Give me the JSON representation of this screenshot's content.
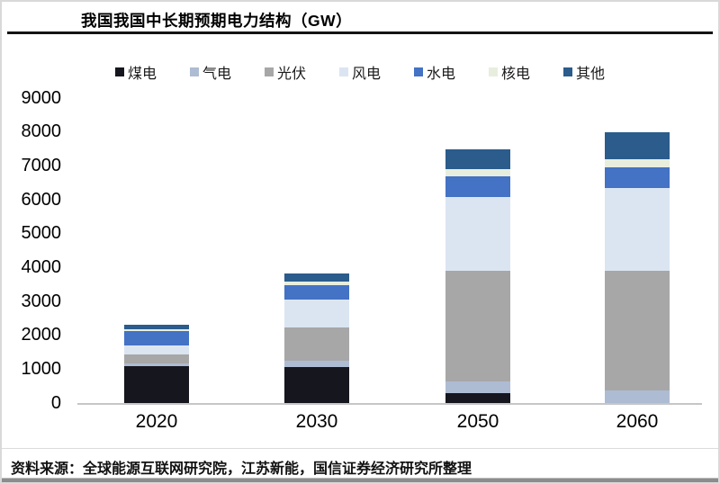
{
  "page": {
    "title": "我国我国中长期预期电力结构（GW）",
    "source_note": "资料来源：全球能源互联网研究院，江苏新能，国信证券经济研究所整理"
  },
  "chart_data": {
    "type": "bar",
    "stacked": true,
    "title": "我国我国中长期预期电力结构（GW）",
    "unit": "GW",
    "categories": [
      "2020",
      "2030",
      "2050",
      "2060"
    ],
    "series": [
      {
        "name": "煤电",
        "color": "#16161e",
        "values": [
          1080,
          1050,
          300,
          0
        ]
      },
      {
        "name": "气电",
        "color": "#aebcd3",
        "values": [
          100,
          190,
          350,
          360
        ]
      },
      {
        "name": "光伏",
        "color": "#a7a7a7",
        "values": [
          250,
          1000,
          3250,
          3540
        ]
      },
      {
        "name": "风电",
        "color": "#dbe5f2",
        "values": [
          270,
          800,
          2170,
          2440
        ]
      },
      {
        "name": "水电",
        "color": "#4472c4",
        "values": [
          420,
          450,
          620,
          620
        ]
      },
      {
        "name": "核电",
        "color": "#e8eedd",
        "values": [
          50,
          90,
          220,
          240
        ]
      },
      {
        "name": "其他",
        "color": "#2b5c8c",
        "values": [
          130,
          250,
          590,
          800
        ]
      }
    ],
    "totals": [
      2300,
      3830,
      7500,
      8000
    ],
    "ylim": [
      0,
      9000
    ],
    "ytick_step": 1000,
    "yticks": [
      "0",
      "1000",
      "2000",
      "3000",
      "4000",
      "5000",
      "6000",
      "7000",
      "8000",
      "9000"
    ],
    "xlabel": "",
    "ylabel": "",
    "legend_position": "top",
    "grid": false
  }
}
